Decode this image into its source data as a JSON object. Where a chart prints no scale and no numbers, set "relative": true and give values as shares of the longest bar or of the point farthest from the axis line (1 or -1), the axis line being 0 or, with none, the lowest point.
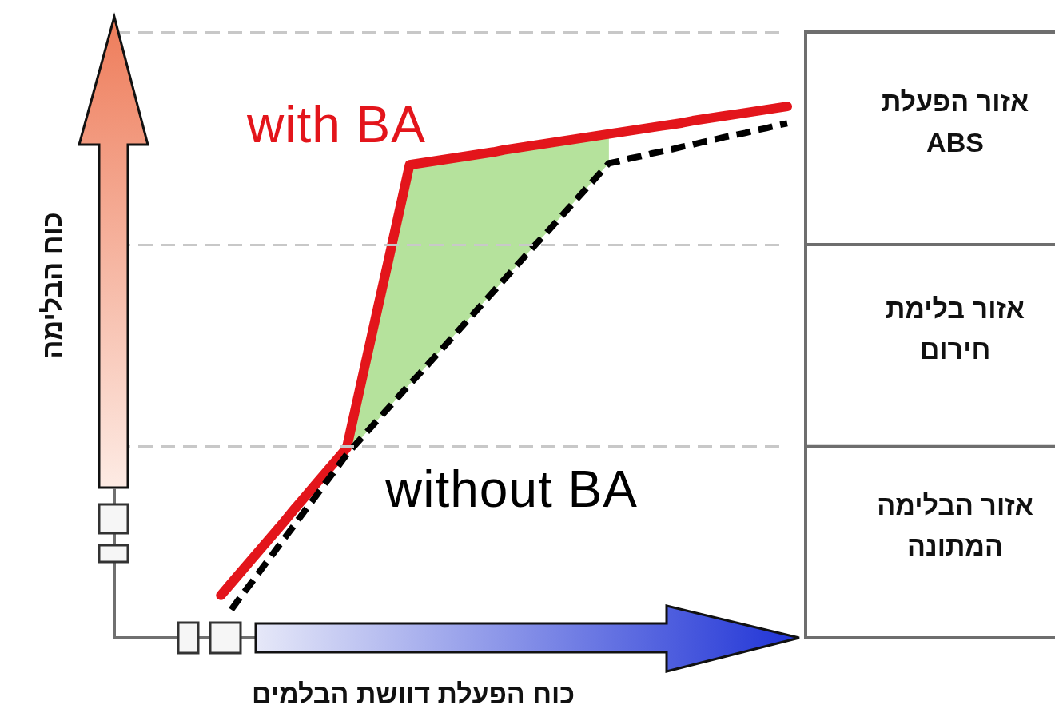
{
  "chart_data": {
    "type": "line",
    "relative": true,
    "xlabel": "כוח הפעלת דוושת הבלמים",
    "ylabel": "כוח הבלימה",
    "marker": "none",
    "line_style": "solid",
    "categories": [
      null,
      null,
      null,
      null,
      null,
      null,
      null,
      null,
      null,
      null,
      null,
      null,
      null,
      null,
      null,
      null,
      null,
      null,
      null,
      null,
      null,
      null,
      null,
      null,
      null,
      null,
      null,
      null,
      null,
      null,
      null,
      null,
      null,
      null,
      null,
      null,
      null,
      null,
      null,
      null,
      null,
      null,
      null,
      null,
      null,
      null,
      null,
      null,
      null,
      null,
      null,
      null,
      null,
      null,
      null,
      null,
      null,
      null,
      null,
      null,
      null,
      null,
      null,
      null,
      null
    ],
    "series": [
      {
        "name": "with BA",
        "color": "#e3151b",
        "values": [
          null,
          null,
          null,
          null,
          null,
          null,
          null,
          null,
          null,
          null,
          0.08,
          0.103,
          0.126,
          0.149,
          0.172,
          0.195,
          0.218,
          0.242,
          0.265,
          0.288,
          0.311,
          0.334,
          0.357,
          0.446,
          0.535,
          0.624,
          0.712,
          0.801,
          0.89,
          0.893,
          0.896,
          0.899,
          0.902,
          0.905,
          0.908,
          0.911,
          0.914,
          0.918,
          0.921,
          0.924,
          0.927,
          0.93,
          0.933,
          0.936,
          0.939,
          0.942,
          0.945,
          0.948,
          0.951,
          0.954,
          0.957,
          0.96,
          0.963,
          0.966,
          0.969,
          0.973,
          0.976,
          0.979,
          0.982,
          0.985,
          0.988,
          0.991,
          0.994,
          0.997,
          1
        ]
      },
      {
        "name": "without BA",
        "color": "#000000",
        "line_style": "dashed",
        "values": [
          null,
          null,
          null,
          null,
          null,
          null,
          null,
          null,
          null,
          null,
          null,
          0.053,
          0.08,
          0.106,
          0.133,
          0.159,
          0.186,
          0.212,
          0.239,
          0.265,
          0.292,
          0.318,
          0.345,
          0.367,
          0.389,
          0.411,
          0.433,
          0.455,
          0.477,
          0.498,
          0.52,
          0.542,
          0.564,
          0.586,
          0.608,
          0.63,
          0.652,
          0.674,
          0.696,
          0.718,
          0.74,
          0.761,
          0.783,
          0.805,
          0.827,
          0.849,
          0.871,
          0.893,
          0.897,
          0.902,
          0.906,
          0.911,
          0.915,
          0.919,
          0.924,
          0.928,
          0.933,
          0.937,
          0.942,
          0.946,
          0.95,
          0.955,
          0.959,
          0.964,
          0.968
        ]
      },
      {
        "type": "area",
        "color": "#b5e29c",
        "values": [
          null,
          null,
          null,
          null,
          null,
          null,
          null,
          null,
          null,
          null,
          null,
          null,
          null,
          null,
          null,
          null,
          null,
          null,
          null,
          null,
          null,
          null,
          null,
          null,
          null,
          null,
          null,
          null,
          null,
          null,
          null,
          null,
          null,
          null,
          null,
          null,
          null,
          null,
          null,
          null,
          null,
          null,
          null,
          null,
          null,
          null,
          null,
          null,
          null,
          null,
          null,
          null,
          null,
          null,
          null,
          null,
          null,
          null,
          null,
          null,
          null,
          null,
          null,
          null,
          null
        ],
        "upper": [
          null,
          null,
          null,
          null,
          null,
          null,
          null,
          null,
          null,
          null,
          null,
          null,
          null,
          null,
          null,
          null,
          null,
          null,
          null,
          null,
          null,
          null,
          0.357,
          0.446,
          0.535,
          0.624,
          0.712,
          0.801,
          0.89,
          0.893,
          0.896,
          0.899,
          0.902,
          0.905,
          0.908,
          0.911,
          0.914,
          0.918,
          0.921,
          0.924,
          0.927,
          0.93,
          0.933,
          0.936,
          0.939,
          0.942,
          0.945,
          0.948,
          null,
          null,
          null,
          null,
          null,
          null,
          null,
          null,
          null,
          null,
          null,
          null,
          null,
          null,
          null,
          null,
          null
        ],
        "lower": [
          null,
          null,
          null,
          null,
          null,
          null,
          null,
          null,
          null,
          null,
          null,
          null,
          null,
          null,
          null,
          null,
          null,
          null,
          null,
          null,
          null,
          null,
          0.345,
          0.367,
          0.389,
          0.411,
          0.433,
          0.455,
          0.477,
          0.498,
          0.52,
          0.542,
          0.564,
          0.586,
          0.608,
          0.63,
          0.652,
          0.674,
          0.696,
          0.718,
          0.74,
          0.761,
          0.783,
          0.805,
          0.827,
          0.849,
          0.871,
          0.893,
          null,
          null,
          null,
          null,
          null,
          null,
          null,
          null,
          null,
          null,
          null,
          null,
          null,
          null,
          null,
          null,
          null
        ]
      }
    ],
    "ref_lines": [
      {
        "axis": "y",
        "value": 0.36,
        "color": "#c8c8c8",
        "line_style": "dashed"
      },
      {
        "axis": "y",
        "value": 0.74,
        "color": "#c8c8c8",
        "line_style": "dashed"
      },
      {
        "axis": "y",
        "value": 1.14,
        "color": "#c8c8c8",
        "line_style": "dashed"
      }
    ],
    "annotations": [
      "אזור הפעלת ABS",
      "אזור בלימת חירום",
      "אזור הבלימה המתונה"
    ]
  }
}
